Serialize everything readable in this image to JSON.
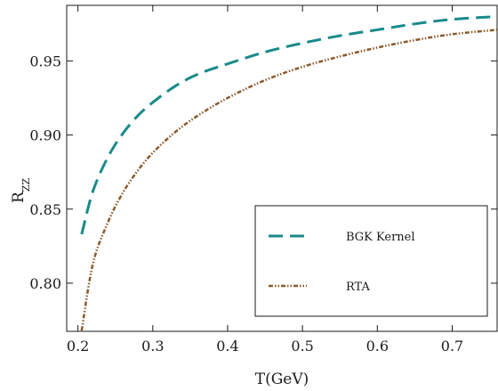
{
  "chart_data": {
    "type": "line",
    "xlabel": "T(GeV)",
    "ylabel": {
      "main": "R",
      "sub": "ZZ"
    },
    "xlim": [
      0.185,
      0.76
    ],
    "ylim": [
      0.7675,
      0.9875
    ],
    "xticks": [
      0.2,
      0.3,
      0.4,
      0.5,
      0.6,
      0.7
    ],
    "xtick_labels": [
      "0.2",
      "0.3",
      "0.4",
      "0.5",
      "0.6",
      "0.7"
    ],
    "yticks": [
      0.8,
      0.85,
      0.9,
      0.95
    ],
    "ytick_labels": [
      "0.80",
      "0.85",
      "0.90",
      "0.95"
    ],
    "grid": false,
    "legend_position": "bottom-right",
    "series": [
      {
        "name": "BGK Kernel",
        "color": "#1a8a8a",
        "style": "dashed",
        "x": [
          0.205,
          0.22,
          0.24,
          0.26,
          0.28,
          0.3,
          0.33,
          0.36,
          0.4,
          0.45,
          0.5,
          0.55,
          0.6,
          0.65,
          0.7,
          0.76
        ],
        "y": [
          0.833,
          0.862,
          0.885,
          0.901,
          0.913,
          0.922,
          0.933,
          0.941,
          0.948,
          0.956,
          0.962,
          0.967,
          0.971,
          0.975,
          0.978,
          0.98
        ]
      },
      {
        "name": "RTA",
        "color": "#8b5a2b",
        "style": "dashdotdot",
        "x": [
          0.205,
          0.22,
          0.24,
          0.26,
          0.28,
          0.3,
          0.33,
          0.36,
          0.4,
          0.45,
          0.5,
          0.55,
          0.6,
          0.65,
          0.7,
          0.76
        ],
        "y": [
          0.768,
          0.813,
          0.841,
          0.861,
          0.876,
          0.888,
          0.902,
          0.913,
          0.925,
          0.937,
          0.946,
          0.953,
          0.959,
          0.964,
          0.968,
          0.971
        ]
      }
    ]
  }
}
